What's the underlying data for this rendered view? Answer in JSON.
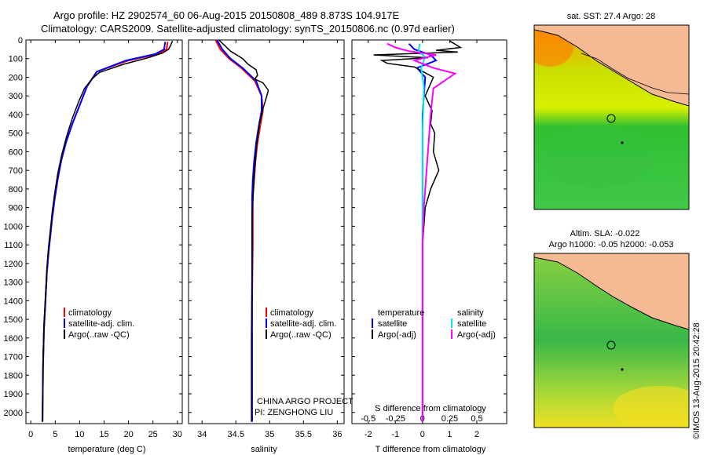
{
  "header": {
    "line1": "Argo profile: HZ 2902574_60 06-Aug-2015 20150808_489 8.873S 104.917E",
    "line2": "Climatology: CARS2009. Satellite-adjusted climatology: synTS_20150806.nc (0.97d earlier)"
  },
  "side_label": "©IMOS 13-Aug-2015 20:42:28",
  "colors": {
    "climatology": "#ff0000",
    "satellite": "#0000ff",
    "argo": "#000000",
    "sal_satellite": "#00e5ee",
    "sal_argo": "#ff00ff",
    "land": "#f5b994"
  },
  "chart_data": [
    {
      "type": "line",
      "panel": "temperature",
      "xlabel": "temperature (deg C)",
      "xlim": [
        -1,
        31
      ],
      "xticks": [
        0,
        5,
        10,
        15,
        20,
        25,
        30
      ],
      "ylim": [
        2060,
        0
      ],
      "yticks": [
        0,
        100,
        200,
        300,
        400,
        500,
        600,
        700,
        800,
        900,
        1000,
        1100,
        1200,
        1300,
        1400,
        1500,
        1600,
        1700,
        1800,
        1900,
        2000
      ],
      "legend": [
        "climatology",
        "satellite-adj. clim.",
        "Argo(..raw -QC)"
      ],
      "series": [
        {
          "name": "climatology",
          "color": "#ff0000",
          "x": [
            28,
            27.8,
            26,
            20,
            13.5,
            11.5,
            10,
            8.5,
            7.2,
            6.2,
            5.5,
            4.9,
            4.4,
            4,
            3.6,
            3.3,
            3.1,
            2.9,
            2.7,
            2.6,
            2.5,
            2.4
          ],
          "y": [
            10,
            50,
            75,
            110,
            170,
            250,
            350,
            450,
            550,
            650,
            750,
            850,
            950,
            1050,
            1150,
            1250,
            1350,
            1450,
            1550,
            1650,
            1750,
            2050
          ]
        },
        {
          "name": "satellite-adj. clim.",
          "color": "#0000ff",
          "x": [
            27.5,
            27.3,
            25.5,
            19.5,
            13.5,
            11.5,
            10,
            8.5,
            7.2,
            6.2,
            5.5,
            4.9,
            4.4,
            4,
            3.6,
            3.3,
            3.1,
            2.9,
            2.7,
            2.6,
            2.5,
            2.4
          ],
          "y": [
            10,
            50,
            75,
            110,
            170,
            250,
            350,
            450,
            550,
            650,
            750,
            850,
            950,
            1050,
            1150,
            1250,
            1350,
            1450,
            1550,
            1650,
            1750,
            2050
          ]
        },
        {
          "name": "Argo(..raw -QC)",
          "color": "#000000",
          "x": [
            29,
            28.6,
            28.2,
            27,
            24,
            19,
            14,
            12.5,
            11,
            9.8,
            8.5,
            7.3,
            6.3,
            5.5,
            4.9,
            4.4,
            4,
            3.6,
            3.3,
            3.1,
            2.9,
            2.7,
            2.6,
            2.5,
            2.4
          ],
          "y": [
            5,
            30,
            50,
            70,
            95,
            130,
            175,
            210,
            260,
            330,
            420,
            520,
            620,
            720,
            820,
            920,
            1020,
            1120,
            1220,
            1320,
            1420,
            1520,
            1620,
            1720,
            2050
          ]
        }
      ]
    },
    {
      "type": "line",
      "panel": "salinity",
      "xlabel": "salinity",
      "xlim": [
        33.8,
        36.1
      ],
      "xticks": [
        34,
        34.5,
        35,
        35.5,
        36
      ],
      "xticklabels": [
        "34",
        "34.5",
        "35",
        "35.5",
        "36"
      ],
      "ylim": [
        2060,
        0
      ],
      "legend": [
        "climatology",
        "satellite-adj. clim.",
        "Argo(..raw -QC)"
      ],
      "series": [
        {
          "name": "climatology",
          "color": "#ff0000",
          "x": [
            34.2,
            34.27,
            34.4,
            34.58,
            34.78,
            34.88,
            34.9,
            34.86,
            34.82,
            34.79,
            34.77,
            34.75,
            34.75,
            34.75,
            34.74,
            34.74,
            34.74
          ],
          "y": [
            0,
            50,
            100,
            150,
            220,
            300,
            380,
            460,
            550,
            650,
            750,
            850,
            950,
            1100,
            1400,
            1700,
            2050
          ]
        },
        {
          "name": "satellite-adj. clim.",
          "color": "#0000ff",
          "x": [
            34.22,
            34.3,
            34.42,
            34.6,
            34.8,
            34.88,
            34.88,
            34.84,
            34.8,
            34.77,
            34.75,
            34.74,
            34.74,
            34.74,
            34.74,
            34.74,
            34.74
          ],
          "y": [
            0,
            50,
            100,
            150,
            220,
            300,
            380,
            460,
            550,
            650,
            750,
            850,
            950,
            1100,
            1400,
            1700,
            2050
          ]
        },
        {
          "name": "Argo(..raw -QC)",
          "color": "#000000",
          "x": [
            34.25,
            34.42,
            34.6,
            34.68,
            34.8,
            34.82,
            34.78,
            34.9,
            34.98,
            34.95,
            34.9,
            34.85,
            34.81,
            34.78,
            34.76,
            34.74,
            34.74,
            34.73,
            34.73
          ],
          "y": [
            0,
            60,
            100,
            130,
            160,
            190,
            210,
            230,
            270,
            310,
            370,
            450,
            560,
            680,
            800,
            950,
            1200,
            1600,
            2050
          ]
        }
      ]
    },
    {
      "type": "line",
      "panel": "difference",
      "xlabel": "T difference from climatology",
      "xlabel_top": "S difference from climatology",
      "xlim": [
        -2.6,
        3.1
      ],
      "xticks_bottom": [
        -2,
        -1,
        0,
        1,
        2
      ],
      "xticks_top": [
        "-0.5",
        "-0.25",
        "0",
        "0.25",
        "0.5"
      ],
      "ylim": [
        2060,
        0
      ],
      "legend_temperature": {
        "title": "temperature",
        "items": [
          "satellite",
          "Argo(-adj)"
        ]
      },
      "legend_salinity": {
        "title": "salinity",
        "items": [
          "satellite",
          "Argo(-adj)"
        ]
      },
      "series": [
        {
          "name": "temperature satellite",
          "color": "#0000ff",
          "x": [
            -0.5,
            -0.3,
            0.3,
            0.5,
            -0.2,
            0.1,
            0,
            0,
            0
          ],
          "y": [
            20,
            50,
            80,
            110,
            150,
            200,
            400,
            1000,
            2050
          ]
        },
        {
          "name": "temperature Argo(-adj)",
          "color": "#000000",
          "x": [
            1,
            1.4,
            0.5,
            1.3,
            -1.8,
            0.2,
            -1.5,
            -1.3,
            -0.3,
            0.4,
            0.1,
            0.35,
            0.3,
            0.45,
            0.4,
            0.6,
            0.3,
            0.1,
            0,
            0
          ],
          "y": [
            5,
            40,
            55,
            65,
            80,
            95,
            110,
            125,
            145,
            200,
            300,
            380,
            450,
            500,
            600,
            700,
            800,
            900,
            1100,
            2050
          ]
        },
        {
          "name": "salinity satellite",
          "color": "#00e5ee",
          "x": [
            -0.1,
            -0.15,
            0.1,
            -0.05,
            0.05,
            0,
            0,
            0
          ],
          "y": [
            20,
            60,
            90,
            150,
            250,
            500,
            1000,
            2050
          ]
        },
        {
          "name": "salinity Argo(-adj)",
          "color": "#ff00ff",
          "x": [
            -1.3,
            -1,
            -0.5,
            0.5,
            -0.3,
            0.4,
            1.2,
            0.8,
            0.4,
            0.3,
            0.25,
            0.2,
            0.15,
            0.05,
            0,
            0
          ],
          "y": [
            20,
            40,
            60,
            80,
            110,
            150,
            180,
            220,
            260,
            400,
            500,
            600,
            700,
            900,
            1100,
            2050
          ]
        }
      ]
    },
    {
      "type": "heatmap",
      "panel": "map_sst",
      "title": "sat. SST: 27.4 Argo: 28",
      "xlim": [
        100,
        110
      ],
      "ylim": [
        -15,
        -3
      ],
      "xticks": [
        100,
        105,
        110
      ],
      "yticks": [
        -4,
        -6,
        -8,
        -10,
        -12,
        -14
      ],
      "marker": {
        "lon": 104.917,
        "lat": -8.873
      }
    },
    {
      "type": "heatmap",
      "panel": "map_sla",
      "title": "Altim. SLA: -0.022",
      "subtitle": "Argo h1000: -0.05 h2000: -0.053",
      "xlim": [
        100,
        110
      ],
      "ylim": [
        -15,
        -3
      ],
      "xticks": [
        100,
        105,
        110
      ],
      "yticks": [
        -4,
        -6,
        -8,
        -10,
        -12,
        -14
      ],
      "marker": {
        "lon": 104.917,
        "lat": -8.873
      }
    }
  ],
  "annotations": {
    "project": "CHINA ARGO PROJECT",
    "pi": "PI: ZENGHONG LIU"
  }
}
